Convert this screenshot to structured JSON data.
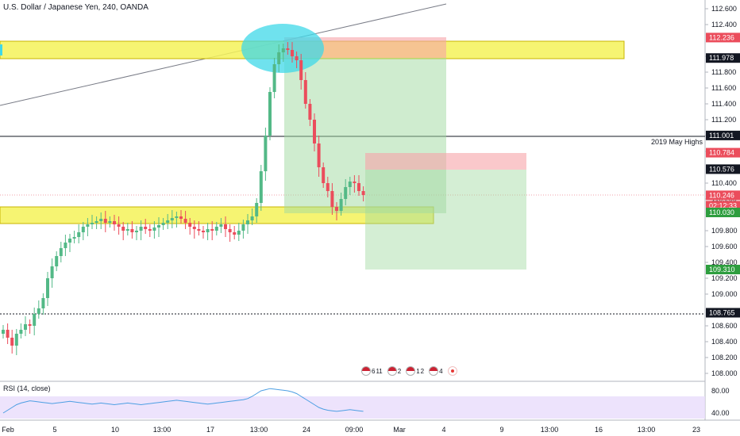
{
  "title": "U.S. Dollar / Japanese Yen, 240, OANDA",
  "rsi_label": "RSI (14, close)",
  "annotation": "2019 May Highs",
  "colors": {
    "up": "#53b987",
    "down": "#eb4d5c",
    "zone": "#f5f259",
    "zone_border": "#c8b400",
    "ellipse": "#3fd8e8",
    "target": "#9fd99f",
    "stop": "#f7a3a8",
    "rsi_fill": "#e9dcfb",
    "rsi_line": "#4d9fe3"
  },
  "chart_data": {
    "type": "candlestick",
    "y_ticks": [
      "112.600",
      "112.400",
      "112.000",
      "111.800",
      "111.600",
      "111.400",
      "111.200",
      "111.000",
      "110.800",
      "110.400",
      "110.200",
      "109.800",
      "109.600",
      "109.400",
      "109.200",
      "109.000",
      "108.600",
      "108.400",
      "108.200",
      "108.000"
    ],
    "x_ticks": [
      "Feb",
      "5",
      "10",
      "13:00",
      "17",
      "13:00",
      "24",
      "09:00",
      "Mar",
      "4",
      "9",
      "13:00",
      "16",
      "13:00",
      "23"
    ],
    "price_tags": [
      {
        "value": "112.236",
        "style": "red"
      },
      {
        "value": "111.978",
        "style": "dark"
      },
      {
        "value": "111.001",
        "style": "dark"
      },
      {
        "value": "110.784",
        "style": "red"
      },
      {
        "value": "110.576",
        "style": "dark"
      },
      {
        "value": "110.246",
        "style": "red"
      },
      {
        "value": "02:12:33",
        "style": "red"
      },
      {
        "value": "110.030",
        "style": "green"
      },
      {
        "value": "109.310",
        "style": "green"
      },
      {
        "value": "108.765",
        "style": "dark"
      }
    ],
    "rsi_ticks": [
      "80.00",
      "40.00"
    ],
    "event_badges": [
      {
        "label": "6"
      },
      {
        "label": "11"
      },
      {
        "label": "2"
      },
      {
        "label": "1"
      },
      {
        "label": "2"
      },
      {
        "label": "4"
      }
    ],
    "ylim": [
      108.0,
      112.7
    ],
    "close": [
      108.55,
      108.45,
      108.35,
      108.5,
      108.55,
      108.62,
      108.6,
      108.75,
      108.82,
      108.95,
      109.2,
      109.35,
      109.48,
      109.58,
      109.65,
      109.7,
      109.72,
      109.78,
      109.85,
      109.88,
      109.9,
      109.92,
      109.95,
      109.9,
      109.92,
      109.88,
      109.85,
      109.8,
      109.82,
      109.78,
      109.8,
      109.85,
      109.82,
      109.8,
      109.84,
      109.87,
      109.9,
      109.93,
      109.96,
      109.98,
      109.95,
      109.9,
      109.85,
      109.82,
      109.8,
      109.78,
      109.82,
      109.8,
      109.85,
      109.88,
      109.82,
      109.78,
      109.75,
      109.8,
      109.88,
      109.93,
      109.98,
      110.15,
      110.55,
      111.0,
      111.55,
      111.9,
      112.05,
      112.1,
      112.08,
      112.0,
      111.95,
      111.7,
      111.4,
      111.2,
      110.9,
      110.6,
      110.4,
      110.3,
      110.1,
      110.05,
      110.2,
      110.35,
      110.42,
      110.4,
      110.3,
      110.25
    ]
  }
}
